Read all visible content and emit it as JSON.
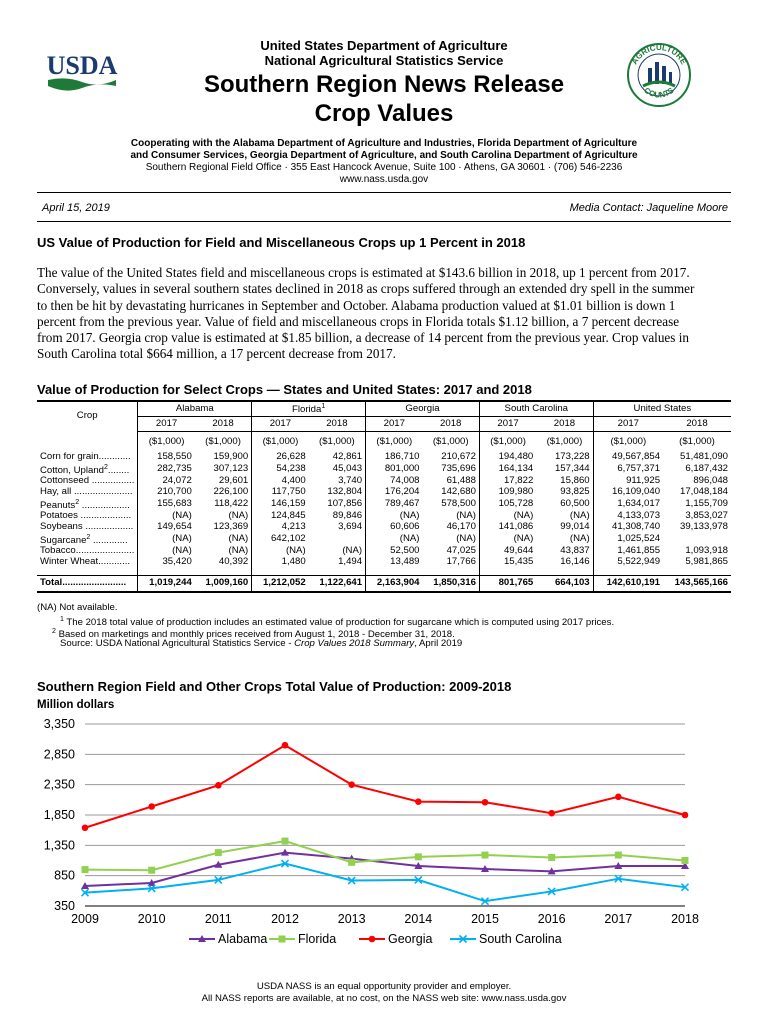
{
  "header": {
    "agency": "United States Department of Agriculture",
    "service": "National Agricultural Statistics Service",
    "title": "Southern Region News Release",
    "subtitle": "Crop Values",
    "coop_line1": "Cooperating with the Alabama Department of Agriculture and Industries, Florida Department of Agriculture",
    "coop_line2": "and Consumer Services, Georgia Department of Agriculture, and South Carolina Department of Agriculture",
    "office": "Southern Regional Field Office · 355 East Hancock Avenue, Suite 100 · Athens, GA 30601 · (706) 546-2236",
    "website": "www.nass.usda.gov",
    "logo_text": "USDA",
    "badge_text_top": "AGRICULTURE",
    "badge_text_bottom": "COUNTS"
  },
  "meta": {
    "date": "April 15, 2019",
    "contact": "Media Contact: Jaqueline Moore"
  },
  "headline": "US Value of Production for Field and Miscellaneous Crops up 1 Percent in 2018",
  "body_lines": [
    "The value of the United States field and miscellaneous crops is estimated at $143.6 billion in 2018, up 1 percent from 2017.",
    "Conversely, values in several southern states declined in 2018 as crops suffered through an extended dry spell in the summer",
    "to then be hit by devastating hurricanes in September and October. Alabama production valued at $1.01 billion is down 1",
    "percent from the previous year. Value of field and miscellaneous crops in Florida totals $1.12 billion, a 7 percent decrease",
    "from 2017. Georgia crop value is estimated at $1.85 billion, a decrease of 14 percent from the previous year. Crop values in",
    "South Carolina total $664 million, a 17 percent decrease from 2017."
  ],
  "table": {
    "title": "Value of Production for Select Crops — States and United States: 2017 and 2018",
    "crop_header": "Crop",
    "states": [
      "Alabama",
      "Florida",
      "Georgia",
      "South Carolina",
      "United States"
    ],
    "florida_mark": "1",
    "years": [
      "2017",
      "2018"
    ],
    "unit": "($1,000)",
    "rows": [
      {
        "crop": "Corn for grain............",
        "sup": "",
        "vals": [
          "158,550",
          "159,900",
          "26,628",
          "42,861",
          "186,710",
          "210,672",
          "194,480",
          "173,228",
          "49,567,854",
          "51,481,090"
        ]
      },
      {
        "crop": "Cotton, Upland",
        "sup": "2",
        "dots": "........",
        "vals": [
          "282,735",
          "307,123",
          "54,238",
          "45,043",
          "801,000",
          "735,696",
          "164,134",
          "157,344",
          "6,757,371",
          "6,187,432"
        ]
      },
      {
        "crop": "Cottonseed ................",
        "sup": "",
        "vals": [
          "24,072",
          "29,601",
          "4,400",
          "3,740",
          "74,008",
          "61,488",
          "17,822",
          "15,860",
          "911,925",
          "896,048"
        ]
      },
      {
        "crop": "Hay, all ......................",
        "sup": "",
        "vals": [
          "210,700",
          "226,100",
          "117,750",
          "132,804",
          "176,204",
          "142,680",
          "109,980",
          "93,825",
          "16,109,040",
          "17,048,184"
        ]
      },
      {
        "crop": "Peanuts",
        "sup": "2",
        "dots": " ..................",
        "vals": [
          "155,683",
          "118,422",
          "146,159",
          "107,856",
          "789,467",
          "578,500",
          "105,728",
          "60,500",
          "1,634,017",
          "1,155,709"
        ]
      },
      {
        "crop": "Potatoes ...................",
        "sup": "",
        "vals": [
          "(NA)",
          "(NA)",
          "124,845",
          "89,846",
          "(NA)",
          "(NA)",
          "(NA)",
          "(NA)",
          "4,133,073",
          "3,853,027"
        ]
      },
      {
        "crop": "Soybeans ..................",
        "sup": "",
        "vals": [
          "149,654",
          "123,369",
          "4,213",
          "3,694",
          "60,606",
          "46,170",
          "141,086",
          "99,014",
          "41,308,740",
          "39,133,978"
        ]
      },
      {
        "crop": "Sugarcane",
        "sup": "2",
        "dots": " .............",
        "vals": [
          "(NA)",
          "(NA)",
          "642,102",
          "",
          "(NA)",
          "(NA)",
          "(NA)",
          "(NA)",
          "1,025,524",
          ""
        ]
      },
      {
        "crop": "Tobacco......................",
        "sup": "",
        "vals": [
          "(NA)",
          "(NA)",
          "(NA)",
          "(NA)",
          "52,500",
          "47,025",
          "49,644",
          "43,837",
          "1,461,855",
          "1,093,918"
        ]
      },
      {
        "crop": "Winter Wheat............",
        "sup": "",
        "vals": [
          "35,420",
          "40,392",
          "1,480",
          "1,494",
          "13,489",
          "17,766",
          "15,435",
          "16,146",
          "5,522,949",
          "5,981,865"
        ]
      }
    ],
    "total": {
      "crop": "Total........................",
      "vals": [
        "1,019,244",
        "1,009,160",
        "1,212,052",
        "1,122,641",
        "2,163,904",
        "1,850,316",
        "801,765",
        "664,103",
        "142,610,191",
        "143,565,166"
      ]
    }
  },
  "notes": {
    "na": "(NA) Not available.",
    "n1_mark": "1",
    "n1": " The 2018 total value of production includes an estimated value of production for sugarcane which is computed using 2017 prices.",
    "n2_mark": "2",
    "n2": " Based on marketings and monthly prices received from August 1, 2018 - December 31, 2018.",
    "source_prefix": "Source: USDA National Agricultural Statistics Service - ",
    "source_italic": "Crop Values 2018 Summary",
    "source_suffix": ", April 2019"
  },
  "chart_data": {
    "type": "line",
    "title": "Southern Region Field and Other Crops Total Value of Production: 2009-2018",
    "ylabel": "Million dollars",
    "xlabel": "",
    "x": [
      "2009",
      "2010",
      "2011",
      "2012",
      "2013",
      "2014",
      "2015",
      "2016",
      "2017",
      "2018"
    ],
    "ylim": [
      350,
      3350
    ],
    "yticks": [
      "350",
      "850",
      "1,350",
      "1,850",
      "2,350",
      "2,850",
      "3,350"
    ],
    "grid": true,
    "legend": "bottom",
    "series": [
      {
        "name": "Alabama",
        "color": "#7030a0",
        "marker": "triangle",
        "values": [
          680,
          730,
          1030,
          1230,
          1130,
          1010,
          960,
          920,
          1010,
          1010
        ]
      },
      {
        "name": "Florida",
        "color": "#92d050",
        "marker": "square",
        "values": [
          950,
          940,
          1230,
          1420,
          1070,
          1160,
          1190,
          1150,
          1190,
          1100
        ]
      },
      {
        "name": "Georgia",
        "color": "#ff0000",
        "marker": "circle",
        "values": [
          1640,
          1990,
          2340,
          3000,
          2350,
          2070,
          2060,
          1880,
          2150,
          1850
        ]
      },
      {
        "name": "South Carolina",
        "color": "#00b0f0",
        "marker": "x",
        "values": [
          570,
          640,
          780,
          1050,
          770,
          780,
          430,
          590,
          800,
          660
        ]
      }
    ]
  },
  "footer": {
    "line1": "USDA NASS is an equal opportunity provider and employer.",
    "line2": "All NASS reports are available, at no cost, on the NASS web site: www.nass.usda.gov"
  }
}
